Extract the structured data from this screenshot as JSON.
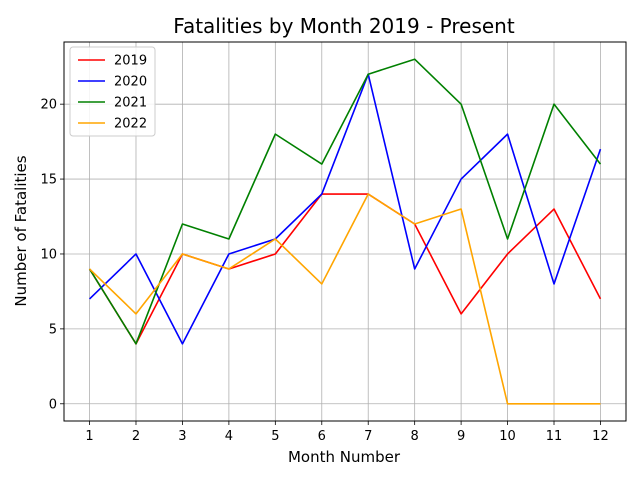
{
  "chart_data": {
    "type": "line",
    "title": "Fatalities by Month 2019 - Present",
    "xlabel": "Month Number",
    "ylabel": "Number of Fatalities",
    "x": [
      1,
      2,
      3,
      4,
      5,
      6,
      7,
      8,
      9,
      10,
      11,
      12
    ],
    "xticks": [
      "1",
      "2",
      "3",
      "4",
      "5",
      "6",
      "7",
      "8",
      "9",
      "10",
      "11",
      "12"
    ],
    "yticks": [
      "0",
      "5",
      "10",
      "15",
      "20"
    ],
    "xlim": [
      0.45,
      12.55
    ],
    "ylim": [
      -1.15,
      24.15
    ],
    "grid": true,
    "legend_position": "top-left",
    "series": [
      {
        "name": "2019",
        "color": "#ff0000",
        "values": [
          9,
          4,
          10,
          9,
          10,
          14,
          14,
          12,
          6,
          10,
          13,
          7
        ]
      },
      {
        "name": "2020",
        "color": "#0000ff",
        "values": [
          7,
          10,
          4,
          10,
          11,
          14,
          22,
          9,
          15,
          18,
          8,
          17
        ]
      },
      {
        "name": "2021",
        "color": "#008000",
        "values": [
          9,
          4,
          12,
          11,
          18,
          16,
          22,
          23,
          20,
          11,
          20,
          16
        ]
      },
      {
        "name": "2022",
        "color": "#ffa500",
        "values": [
          9,
          6,
          10,
          9,
          11,
          8,
          14,
          12,
          13,
          0,
          0,
          0
        ]
      }
    ]
  }
}
